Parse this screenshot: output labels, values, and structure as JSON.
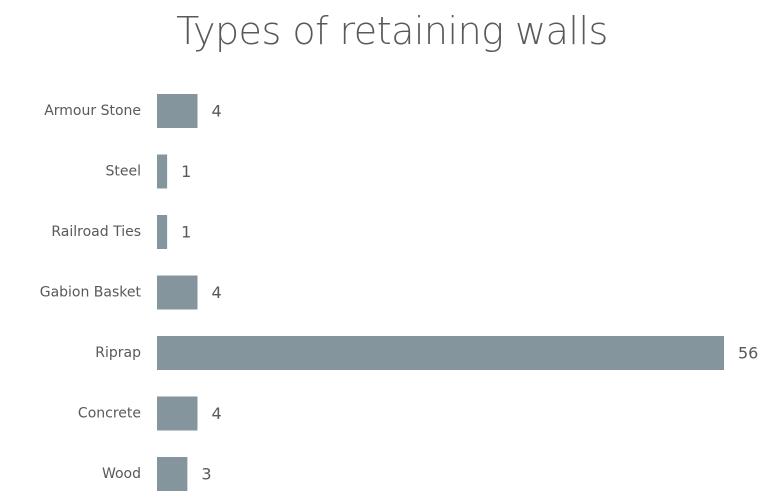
{
  "chart_data": {
    "type": "bar",
    "orientation": "horizontal",
    "title": "Types of retaining walls",
    "categories": [
      "Armour Stone",
      "Steel",
      "Railroad Ties",
      "Gabion Basket",
      "Riprap",
      "Concrete",
      "Wood"
    ],
    "values": [
      4,
      1,
      1,
      4,
      56,
      4,
      3
    ],
    "xlabel": "",
    "ylabel": "",
    "xlim": [
      0,
      56
    ],
    "grid": false,
    "legend": "none",
    "data_labels": true,
    "bar_color": "#85959e"
  }
}
